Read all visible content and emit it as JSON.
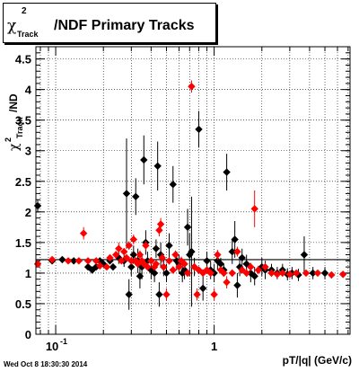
{
  "title": {
    "chi": "χ",
    "sup": "2",
    "sub": "Track",
    "rest": "/NDF  Primary Tracks"
  },
  "ylabel": {
    "chi": "χ",
    "sup": "2",
    "sub": "Track",
    "rest": "/ND"
  },
  "xlabel": "pT/|q| (GeV/c)",
  "timestamp": "Wed Oct  8 18:30:30 2014",
  "chart_data": {
    "type": "scatter",
    "title": "χ²_Track/NDF  Primary Tracks",
    "xlabel": "pT/|q| (GeV/c)",
    "ylabel": "χ²_Track/NDF",
    "xscale": "log",
    "xlim": [
      0.075,
      7.2
    ],
    "ylim": [
      0,
      4.7
    ],
    "xticks": [
      {
        "v": 0.1,
        "label": "10",
        "sup": "-1"
      },
      {
        "v": 1,
        "label": "1",
        "sup": ""
      }
    ],
    "yticks": [
      0,
      0.5,
      1,
      1.5,
      2,
      2.5,
      3,
      3.5,
      4,
      4.5
    ],
    "grid": true,
    "reference_line": 1.22,
    "series": [
      {
        "color": "#000000",
        "marker": "diamond",
        "points": [
          [
            0.077,
            2.1,
            0.1
          ],
          [
            0.095,
            1.2,
            0.03
          ],
          [
            0.11,
            1.22,
            0.03
          ],
          [
            0.13,
            1.2,
            0.03
          ],
          [
            0.16,
            1.1,
            0.05
          ],
          [
            0.17,
            1.05,
            0.05
          ],
          [
            0.18,
            1.1,
            0.04
          ],
          [
            0.19,
            1.2,
            0.05
          ],
          [
            0.2,
            1.15,
            0.04
          ],
          [
            0.22,
            1.2,
            0.05
          ],
          [
            0.23,
            1.1,
            0.05
          ],
          [
            0.25,
            1.25,
            0.1
          ],
          [
            0.27,
            1.2,
            0.1
          ],
          [
            0.28,
            2.3,
            0.9
          ],
          [
            0.29,
            0.65,
            0.25
          ],
          [
            0.3,
            1.1,
            0.15
          ],
          [
            0.31,
            1.3,
            0.15
          ],
          [
            0.32,
            2.25,
            0.3
          ],
          [
            0.33,
            1.2,
            0.2
          ],
          [
            0.34,
            0.95,
            0.2
          ],
          [
            0.35,
            1.1,
            0.2
          ],
          [
            0.36,
            2.85,
            0.4
          ],
          [
            0.37,
            1.5,
            0.2
          ],
          [
            0.38,
            1.2,
            0.15
          ],
          [
            0.4,
            1.05,
            0.15
          ],
          [
            0.42,
            1.0,
            0.15
          ],
          [
            0.43,
            1.4,
            0.15
          ],
          [
            0.44,
            2.75,
            0.4
          ],
          [
            0.45,
            0.65,
            0.2
          ],
          [
            0.46,
            1.3,
            0.2
          ],
          [
            0.48,
            1.1,
            0.15
          ],
          [
            0.5,
            1.0,
            0.15
          ],
          [
            0.52,
            1.45,
            0.2
          ],
          [
            0.55,
            2.45,
            0.3
          ],
          [
            0.58,
            1.2,
            0.15
          ],
          [
            0.6,
            1.15,
            0.15
          ],
          [
            0.63,
            1.0,
            0.15
          ],
          [
            0.65,
            1.05,
            0.15
          ],
          [
            0.68,
            1.75,
            0.3
          ],
          [
            0.7,
            1.3,
            0.35
          ],
          [
            0.72,
            1.35,
            0.9
          ],
          [
            0.75,
            1.1,
            0.15
          ],
          [
            0.8,
            3.35,
            0.3
          ],
          [
            0.85,
            0.75,
            0.2
          ],
          [
            0.9,
            1.2,
            0.15
          ],
          [
            0.95,
            1.05,
            0.15
          ],
          [
            1.0,
            1.0,
            0.15
          ],
          [
            1.05,
            1.2,
            0.15
          ],
          [
            1.1,
            1.15,
            0.1
          ],
          [
            1.15,
            1.05,
            0.1
          ],
          [
            1.2,
            2.65,
            0.3
          ],
          [
            1.3,
            1.35,
            0.2
          ],
          [
            1.35,
            1.55,
            0.3
          ],
          [
            1.4,
            0.8,
            0.2
          ],
          [
            1.45,
            1.1,
            0.15
          ],
          [
            1.5,
            1.25,
            0.15
          ],
          [
            1.6,
            1.15,
            0.15
          ],
          [
            1.7,
            1.0,
            0.15
          ],
          [
            1.8,
            0.95,
            0.15
          ],
          [
            2.0,
            1.1,
            0.15
          ],
          [
            2.1,
            1.05,
            0.15
          ],
          [
            2.3,
            1.05,
            0.1
          ],
          [
            2.5,
            1.0,
            0.1
          ],
          [
            2.7,
            1.05,
            0.1
          ],
          [
            2.9,
            0.98,
            0.1
          ],
          [
            3.1,
            1.0,
            0.1
          ],
          [
            3.4,
            0.97,
            0.1
          ],
          [
            3.7,
            1.3,
            0.3
          ],
          [
            4.2,
            1.0,
            0.1
          ],
          [
            5.0,
            1.0,
            0.1
          ]
        ]
      },
      {
        "color": "#ff0000",
        "marker": "diamond",
        "points": [
          [
            0.077,
            1.15,
            0.03
          ],
          [
            0.095,
            1.22,
            0.03
          ],
          [
            0.12,
            1.2,
            0.03
          ],
          [
            0.14,
            1.2,
            0.03
          ],
          [
            0.15,
            1.65,
            0.1
          ],
          [
            0.16,
            1.2,
            0.05
          ],
          [
            0.18,
            1.2,
            0.05
          ],
          [
            0.19,
            1.12,
            0.05
          ],
          [
            0.21,
            1.1,
            0.05
          ],
          [
            0.22,
            1.25,
            0.05
          ],
          [
            0.24,
            1.3,
            0.06
          ],
          [
            0.25,
            1.4,
            0.1
          ],
          [
            0.26,
            1.2,
            0.05
          ],
          [
            0.27,
            1.35,
            0.06
          ],
          [
            0.28,
            1.25,
            0.06
          ],
          [
            0.29,
            1.45,
            0.07
          ],
          [
            0.3,
            1.2,
            0.06
          ],
          [
            0.31,
            1.55,
            0.08
          ],
          [
            0.32,
            1.2,
            0.06
          ],
          [
            0.33,
            1.15,
            0.06
          ],
          [
            0.34,
            1.3,
            0.07
          ],
          [
            0.35,
            1.2,
            0.06
          ],
          [
            0.36,
            1.15,
            0.06
          ],
          [
            0.37,
            1.45,
            0.08
          ],
          [
            0.38,
            1.1,
            0.06
          ],
          [
            0.4,
            1.2,
            0.06
          ],
          [
            0.42,
            1.1,
            0.06
          ],
          [
            0.43,
            1.15,
            0.06
          ],
          [
            0.45,
            1.7,
            0.1
          ],
          [
            0.46,
            1.8,
            0.1
          ],
          [
            0.47,
            1.25,
            0.08
          ],
          [
            0.48,
            1.1,
            0.06
          ],
          [
            0.5,
            0.65,
            0.1
          ],
          [
            0.52,
            1.2,
            0.06
          ],
          [
            0.55,
            1.05,
            0.06
          ],
          [
            0.57,
            1.3,
            0.07
          ],
          [
            0.6,
            1.1,
            0.06
          ],
          [
            0.62,
            1.2,
            0.07
          ],
          [
            0.65,
            1.15,
            0.07
          ],
          [
            0.68,
            1.0,
            0.06
          ],
          [
            0.72,
            4.05,
            0.1
          ],
          [
            0.75,
            1.1,
            0.07
          ],
          [
            0.78,
            0.65,
            0.1
          ],
          [
            0.8,
            1.05,
            0.06
          ],
          [
            0.85,
            1.0,
            0.06
          ],
          [
            0.9,
            1.05,
            0.06
          ],
          [
            0.95,
            1.0,
            0.06
          ],
          [
            1.0,
            0.65,
            0.1
          ],
          [
            1.05,
            1.3,
            0.08
          ],
          [
            1.1,
            1.05,
            0.06
          ],
          [
            1.15,
            1.0,
            0.06
          ],
          [
            1.2,
            0.85,
            0.1
          ],
          [
            1.3,
            1.0,
            0.06
          ],
          [
            1.4,
            1.35,
            0.08
          ],
          [
            1.5,
            1.05,
            0.06
          ],
          [
            1.6,
            1.0,
            0.06
          ],
          [
            1.7,
            1.1,
            0.07
          ],
          [
            1.8,
            2.05,
            0.3
          ],
          [
            1.9,
            1.05,
            0.07
          ],
          [
            2.1,
            1.1,
            0.07
          ],
          [
            2.3,
            1.0,
            0.06
          ],
          [
            2.5,
            0.98,
            0.05
          ],
          [
            2.7,
            1.0,
            0.05
          ],
          [
            3.0,
            0.98,
            0.05
          ],
          [
            3.3,
            1.0,
            0.05
          ],
          [
            3.8,
            1.0,
            0.05
          ],
          [
            4.5,
            1.0,
            0.05
          ],
          [
            5.5,
            0.97,
            0.05
          ],
          [
            6.5,
            0.98,
            0.05
          ]
        ]
      }
    ]
  }
}
